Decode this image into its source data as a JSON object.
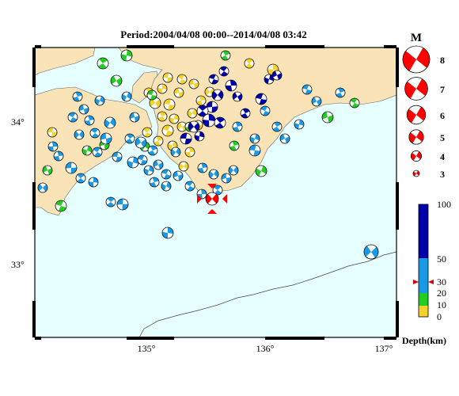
{
  "map": {
    "title": "Period:2004/04/08 00:00--2014/04/08 03:42",
    "lon_ticks": [
      "135°",
      "136°",
      "137°"
    ],
    "lat_ticks": [
      "34°",
      "33°"
    ],
    "land_color": "#fbe3b8",
    "sea_color": "#e6ffff"
  },
  "magnitude_legend": {
    "title": "M",
    "items": [
      {
        "label": "8",
        "m": 8
      },
      {
        "label": "7",
        "m": 7
      },
      {
        "label": "6",
        "m": 6
      },
      {
        "label": "5",
        "m": 5
      },
      {
        "label": "4",
        "m": 4
      },
      {
        "label": "3",
        "m": 3
      }
    ]
  },
  "depth_scale": {
    "title": "Depth(km)",
    "ticks": [
      "100",
      "50",
      "30",
      "20",
      "10",
      "0"
    ],
    "colors": {
      "0-10": "#f5d22a",
      "10-20": "#22cc22",
      "20-50": "#1a9ae6",
      "50-100": "#0000aa"
    },
    "marker_depth": 30
  },
  "highlight_event": {
    "color": "#ff0000"
  }
}
